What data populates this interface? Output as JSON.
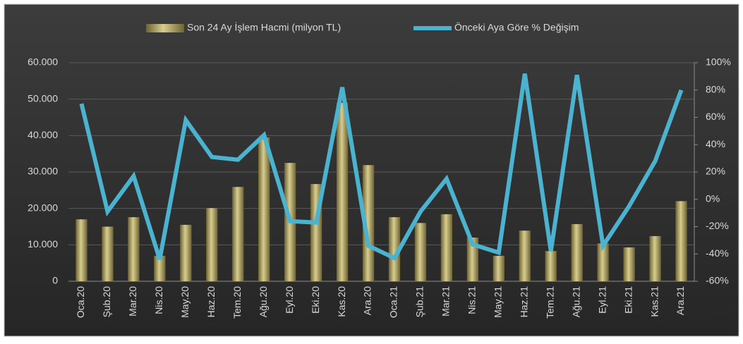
{
  "chart_data": {
    "type": "bar_line",
    "categories": [
      "Oca.20",
      "Şub.20",
      "Mar.20",
      "Nis.20",
      "May.20",
      "Haz.20",
      "Tem.20",
      "Ağu.20",
      "Eyl.20",
      "Eki.20",
      "Kas.20",
      "Ara.20",
      "Oca.21",
      "Şub.21",
      "Mar.21",
      "Nis.21",
      "May.21",
      "Haz.21",
      "Tem.21",
      "Ağu.21",
      "Eyl.21",
      "Eki.21",
      "Kas.21",
      "Ara.21"
    ],
    "series": [
      {
        "name": "Son 24 Ay İşlem Hacmi (milyon TL)",
        "type": "bar",
        "color": "#a89a5a",
        "values": [
          17000,
          15000,
          17600,
          7000,
          15500,
          20100,
          25900,
          39500,
          32500,
          26700,
          49000,
          31900,
          17600,
          16000,
          18400,
          12000,
          7000,
          13900,
          8300,
          15700,
          10400,
          9300,
          12400,
          22000
        ]
      },
      {
        "name": "Önceki Aya Göre % Değişim",
        "type": "line",
        "axis": "y2",
        "color": "#4bb3cf",
        "values": [
          70,
          -9,
          17,
          -44,
          58,
          31,
          29,
          47,
          -16,
          -17,
          82,
          -34,
          -43,
          -9,
          15,
          -33,
          -39,
          92,
          -38,
          91,
          -34,
          -5,
          28,
          80
        ]
      }
    ],
    "ylim": [
      0,
      60000
    ],
    "yticks": [
      0,
      {
        "value": 10000,
        "label": "10.000"
      },
      {
        "value": 20000,
        "label": "20.000"
      },
      {
        "value": 30000,
        "label": "30.000"
      },
      {
        "value": 40000,
        "label": "40.000"
      },
      {
        "value": 50000,
        "label": "50.000"
      },
      {
        "value": 60000,
        "label": "60.000"
      }
    ],
    "y2lim": [
      -60,
      100
    ],
    "y2ticks": [
      {
        "value": -60,
        "label": "-60%"
      },
      {
        "value": -40,
        "label": "-40%"
      },
      {
        "value": -20,
        "label": "-20%"
      },
      {
        "value": 0,
        "label": "0%"
      },
      {
        "value": 20,
        "label": "20%"
      },
      {
        "value": 40,
        "label": "40%"
      },
      {
        "value": 60,
        "label": "60%"
      },
      {
        "value": 80,
        "label": "80%"
      },
      {
        "value": 100,
        "label": "100%"
      }
    ],
    "grid": true,
    "legend": "top"
  }
}
